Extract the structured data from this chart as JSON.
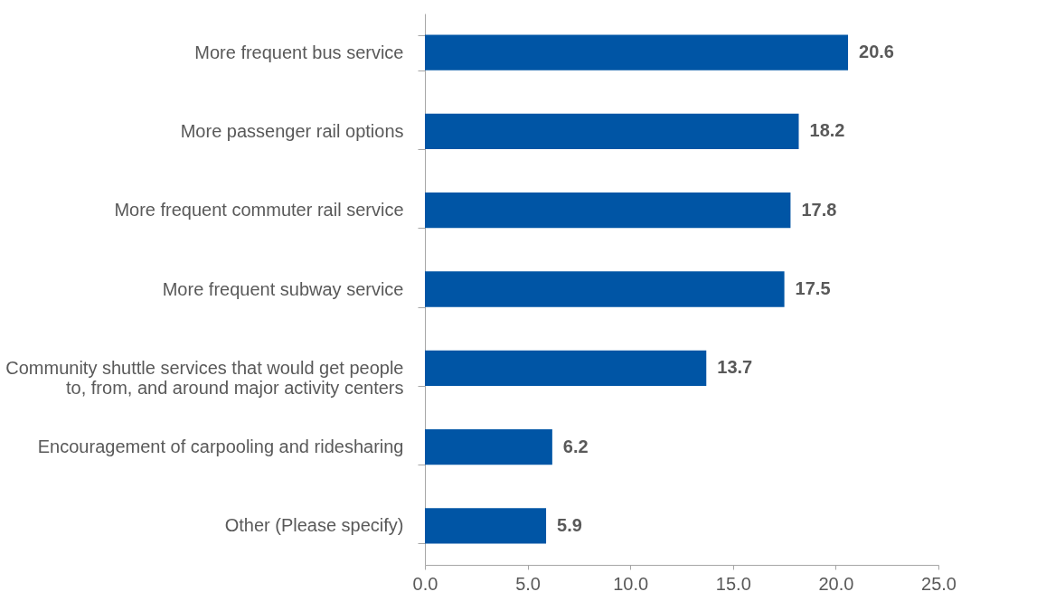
{
  "chart_data": {
    "type": "bar",
    "orientation": "horizontal",
    "categories": [
      "More frequent bus service",
      "More passenger rail options",
      "More frequent commuter rail service",
      "More frequent subway service",
      "Community shuttle services that would get people to, from, and around major activity centers",
      "Encouragement of carpooling and ridesharing",
      "Other (Please specify)"
    ],
    "values": [
      20.6,
      18.2,
      17.8,
      17.5,
      13.7,
      6.2,
      5.9
    ],
    "color": "#0055a5",
    "xlim": [
      0,
      25
    ],
    "xticks": [
      {
        "value": 0,
        "label": "0.0"
      },
      {
        "value": 5,
        "label": "5.0"
      },
      {
        "value": 10,
        "label": "10.0"
      },
      {
        "value": 15,
        "label": "15.0"
      },
      {
        "value": 20,
        "label": "20.0"
      },
      {
        "value": 25,
        "label": "25.0"
      }
    ],
    "data_labels": true,
    "grid": false
  }
}
